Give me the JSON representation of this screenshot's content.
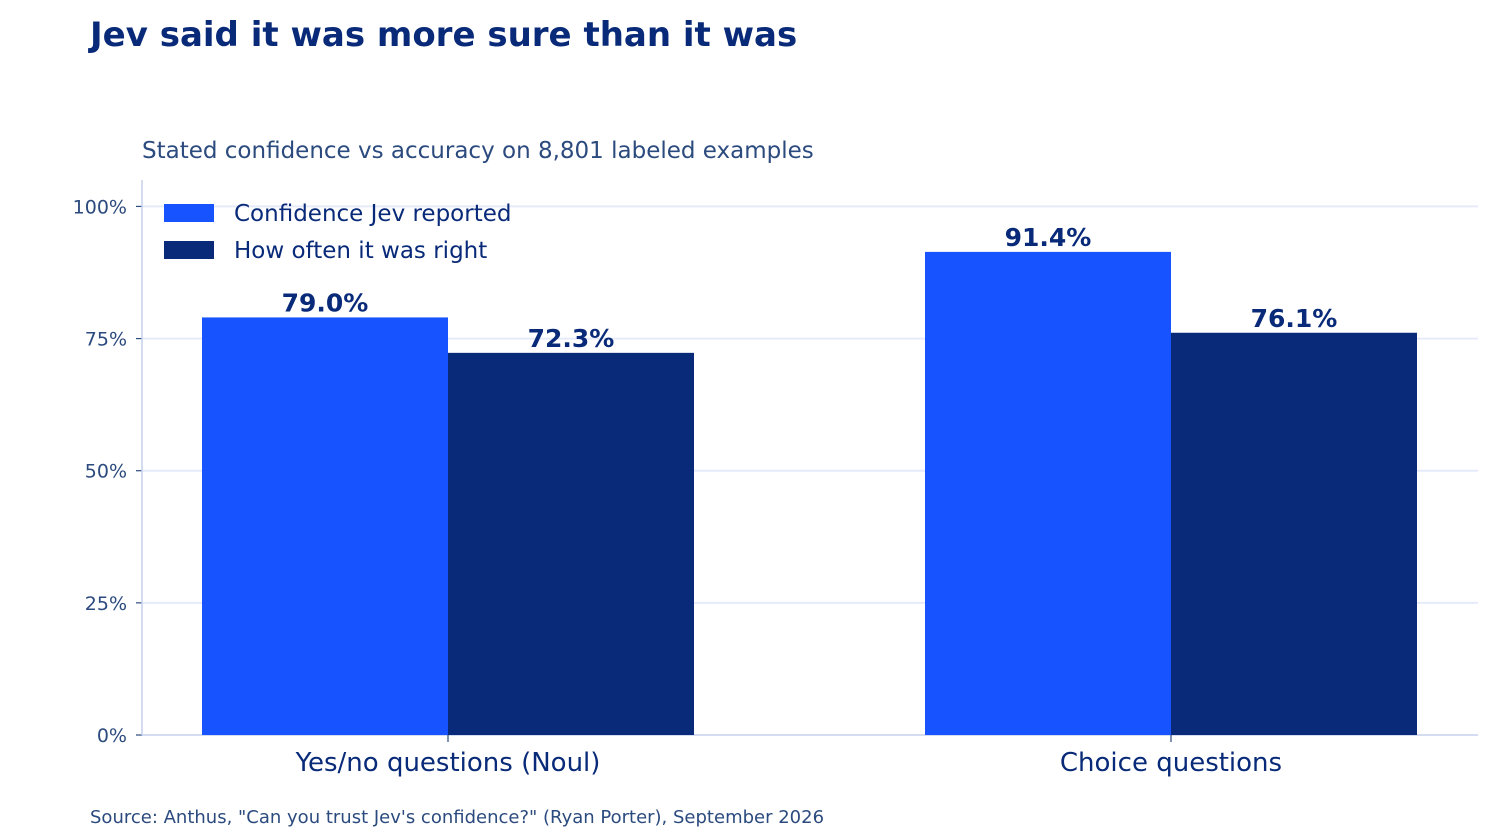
{
  "chart_data": {
    "type": "bar",
    "title": "Jev said it was more sure than it was",
    "subtitle": "Stated confidence vs accuracy on 8,801 labeled examples",
    "categories": [
      "Yes/no questions (Noul)",
      "Choice questions"
    ],
    "series": [
      {
        "name": "Confidence Jev reported",
        "values": [
          79.0,
          91.4
        ],
        "labels": [
          "79.0%",
          "91.4%"
        ],
        "color": "#1753ff"
      },
      {
        "name": "How often it was right",
        "values": [
          72.3,
          76.1
        ],
        "labels": [
          "72.3%",
          "76.1%"
        ],
        "color": "#082a78"
      }
    ],
    "ylim": [
      0,
      105
    ],
    "yticks": [
      0,
      25,
      50,
      75,
      100
    ],
    "ytick_labels": [
      "0%",
      "25%",
      "50%",
      "75%",
      "100%"
    ],
    "xlabel": "",
    "ylabel": "",
    "grid": "horizontal",
    "legend_position": "top-left",
    "source": "Source: Anthus, \"Can you trust Jev's confidence?\" (Ryan Porter), September 2026"
  }
}
